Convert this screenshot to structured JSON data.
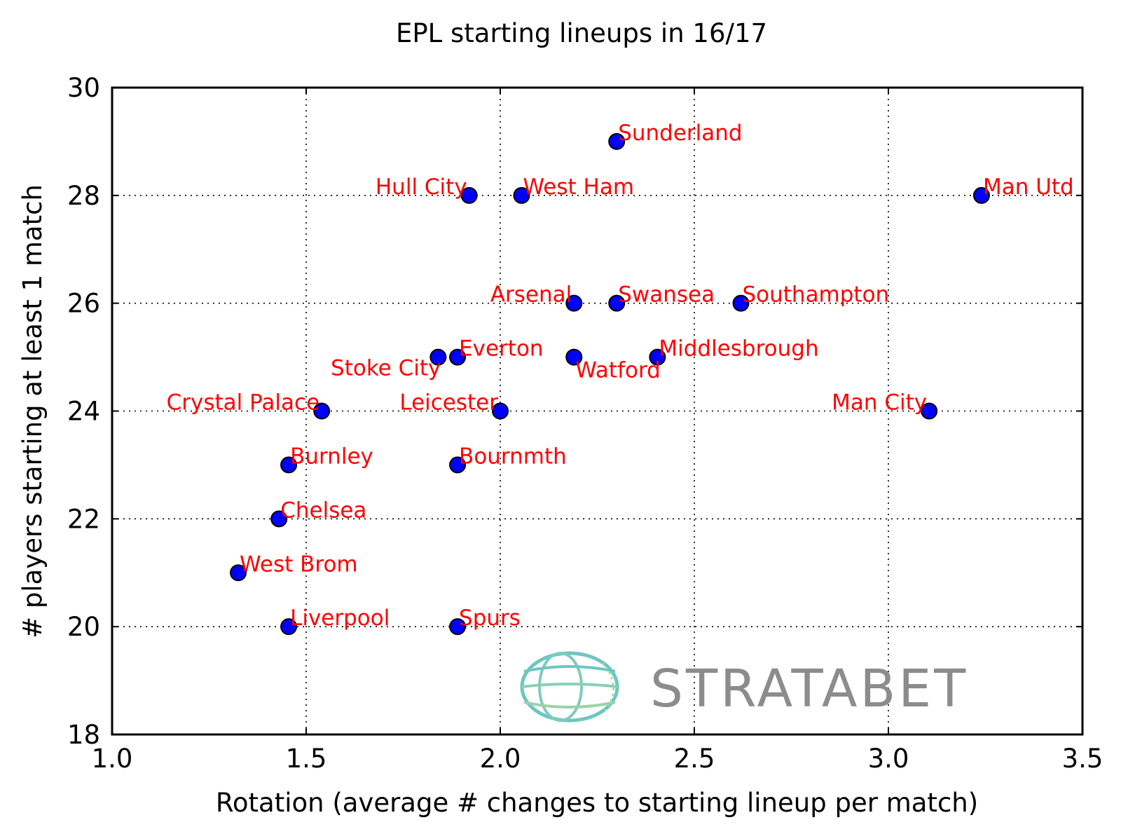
{
  "chart_data": {
    "type": "scatter",
    "title": "EPL starting lineups in 16/17",
    "xlabel": "Rotation (average # changes to starting lineup per match)",
    "ylabel": "# players starting at least 1 match",
    "xlim": [
      1.0,
      3.5
    ],
    "ylim": [
      18,
      30
    ],
    "xticks": [
      1.0,
      1.5,
      2.0,
      2.5,
      3.0,
      3.5
    ],
    "xtick_labels": [
      "1.0",
      "1.5",
      "2.0",
      "2.5",
      "3.0",
      "3.5"
    ],
    "yticks": [
      18,
      20,
      22,
      24,
      26,
      28,
      30
    ],
    "ytick_labels": [
      "18",
      "20",
      "22",
      "24",
      "26",
      "28",
      "30"
    ],
    "grid": true,
    "marker_color": "#0000ff",
    "label_color": "#ff0000",
    "points": [
      {
        "team": "Sunderland",
        "x": 2.3,
        "y": 29,
        "label_side": "right"
      },
      {
        "team": "Hull City",
        "x": 1.92,
        "y": 28,
        "label_side": "left"
      },
      {
        "team": "West Ham",
        "x": 2.055,
        "y": 28,
        "label_side": "right"
      },
      {
        "team": "Man Utd",
        "x": 3.24,
        "y": 28,
        "label_side": "right"
      },
      {
        "team": "Arsenal",
        "x": 2.19,
        "y": 26,
        "label_side": "left"
      },
      {
        "team": "Swansea",
        "x": 2.3,
        "y": 26,
        "label_side": "right"
      },
      {
        "team": "Southampton",
        "x": 2.62,
        "y": 26,
        "label_side": "right"
      },
      {
        "team": "Stoke City",
        "x": 1.84,
        "y": 25,
        "label_side": "below-left"
      },
      {
        "team": "Everton",
        "x": 1.89,
        "y": 25,
        "label_side": "right"
      },
      {
        "team": "Watford",
        "x": 2.19,
        "y": 25,
        "label_side": "below-right"
      },
      {
        "team": "Middlesbrough",
        "x": 2.405,
        "y": 25,
        "label_side": "right"
      },
      {
        "team": "Crystal Palace",
        "x": 1.54,
        "y": 24,
        "label_side": "left"
      },
      {
        "team": "Leicester",
        "x": 2.0,
        "y": 24,
        "label_side": "left"
      },
      {
        "team": "Man City",
        "x": 3.105,
        "y": 24,
        "label_side": "left"
      },
      {
        "team": "Burnley",
        "x": 1.455,
        "y": 23,
        "label_side": "right"
      },
      {
        "team": "Bournmth",
        "x": 1.89,
        "y": 23,
        "label_side": "right"
      },
      {
        "team": "Chelsea",
        "x": 1.43,
        "y": 22,
        "label_side": "right"
      },
      {
        "team": "West Brom",
        "x": 1.325,
        "y": 21,
        "label_side": "right"
      },
      {
        "team": "Liverpool",
        "x": 1.455,
        "y": 20,
        "label_side": "right"
      },
      {
        "team": "Spurs",
        "x": 1.89,
        "y": 20,
        "label_side": "right"
      }
    ]
  },
  "watermark": {
    "text": "STRATABET",
    "globe_color": "#6ec6c0",
    "text_color": "#8c8c8c"
  }
}
